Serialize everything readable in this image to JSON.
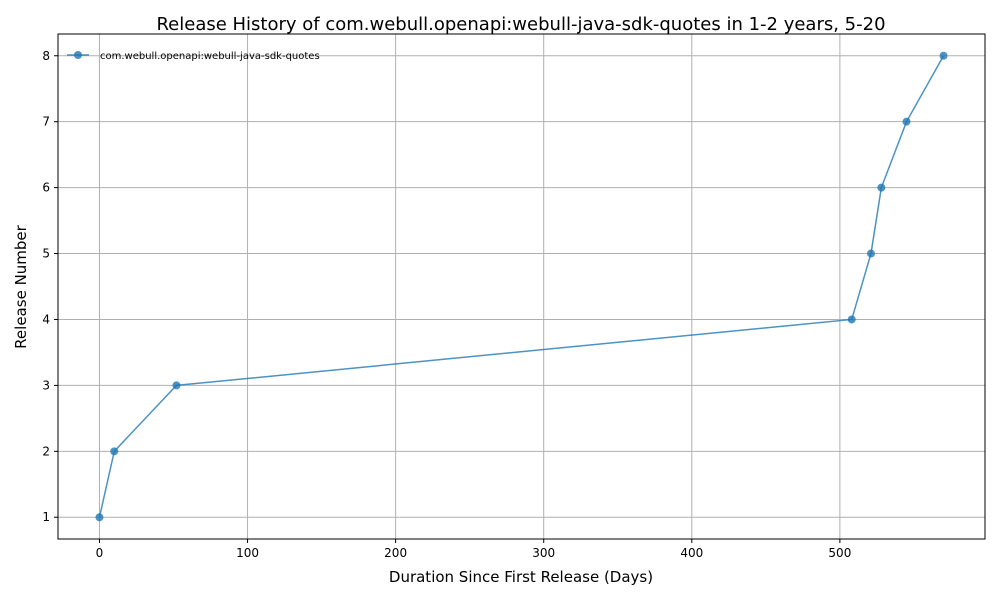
{
  "chart_data": {
    "type": "line",
    "title": "Release History of com.webull.openapi:webull-java-sdk-quotes in 1-2 years, 5-20",
    "xlabel": "Duration Since First Release (Days)",
    "ylabel": "Release Number",
    "xlim": [
      -28,
      598
    ],
    "ylim": [
      0.67,
      8.33
    ],
    "xticks": [
      0,
      100,
      200,
      300,
      400,
      500
    ],
    "yticks": [
      1,
      2,
      3,
      4,
      5,
      6,
      7,
      8
    ],
    "grid": true,
    "legend_position": "upper-left",
    "series": [
      {
        "name": "com.webull.openapi:webull-java-sdk-quotes",
        "color": "#1f77b4",
        "x": [
          0,
          10,
          52,
          508,
          521,
          528,
          545,
          570
        ],
        "y": [
          1,
          2,
          3,
          4,
          5,
          6,
          7,
          8
        ]
      }
    ]
  }
}
